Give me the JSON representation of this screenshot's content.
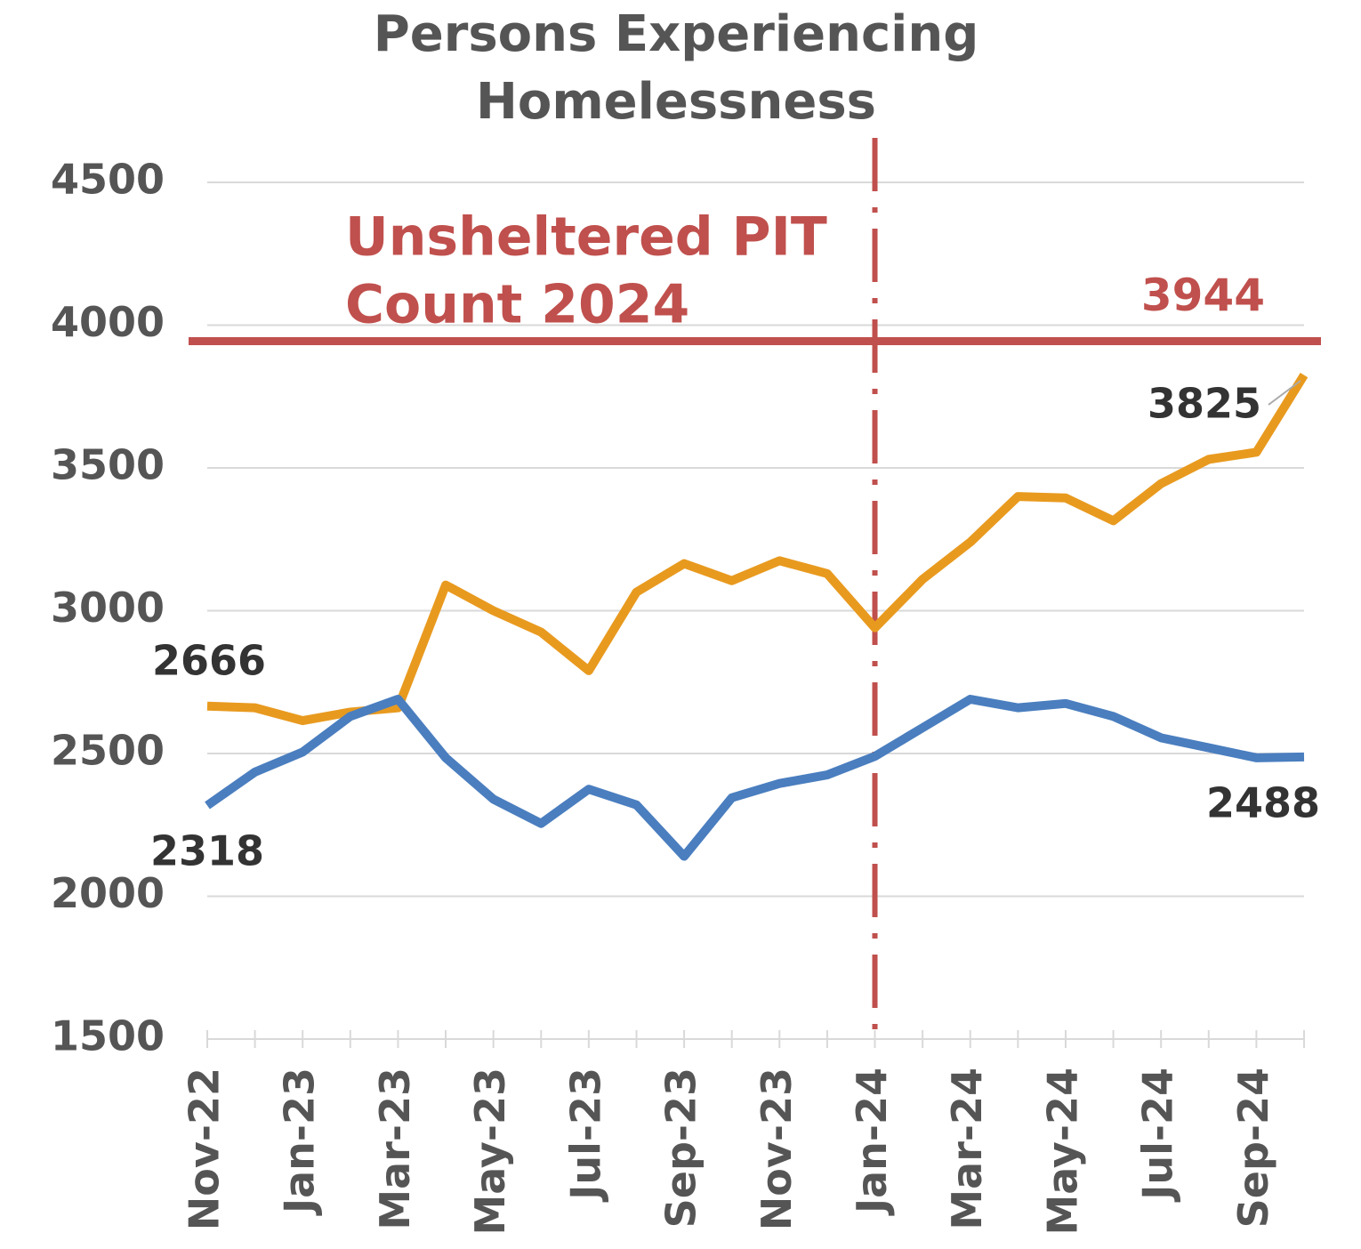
{
  "chart_data": {
    "type": "line",
    "title": [
      "Persons Experiencing",
      "Homelessness"
    ],
    "categories": [
      "Nov-22",
      null,
      "Jan-23",
      null,
      "Mar-23",
      null,
      "May-23",
      null,
      "Jul-23",
      null,
      "Sep-23",
      null,
      "Nov-23",
      null,
      "Jan-24",
      null,
      "Mar-24",
      null,
      "May-24",
      null,
      "Jul-24",
      null,
      "Sep-24",
      null
    ],
    "series": [
      {
        "color": "#e89a1f",
        "values": [
          2666,
          2660,
          2615,
          2645,
          2660,
          3090,
          3000,
          2925,
          2790,
          3065,
          3165,
          3105,
          3175,
          3130,
          2940,
          3110,
          3240,
          3400,
          3395,
          3315,
          3445,
          3530,
          3555,
          3825
        ]
      },
      {
        "color": "#4a7ebf",
        "values": [
          2318,
          2435,
          2505,
          2630,
          2690,
          2485,
          2340,
          2255,
          2375,
          2320,
          2140,
          2345,
          2395,
          2425,
          2490,
          2590,
          2690,
          2660,
          2675,
          2630,
          2555,
          2520,
          2485,
          2488
        ]
      }
    ],
    "ylim": [
      1500,
      4500
    ],
    "yticks": [
      1500,
      2000,
      2500,
      3000,
      3500,
      4000,
      4500
    ],
    "grid": true,
    "reference_line": {
      "value": 3944,
      "color": "#c0504d",
      "annotation": [
        "Unsheltered PIT",
        "Count 2024"
      ]
    },
    "vline_at": "Jan-24"
  }
}
